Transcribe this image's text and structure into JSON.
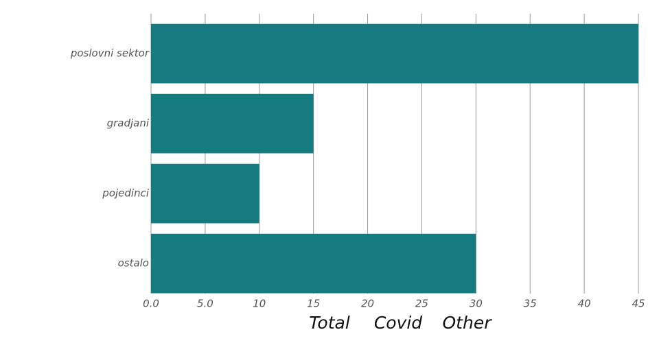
{
  "chart_data": {
    "type": "hbar",
    "categories": [
      "poslovni sektor",
      "gradjani",
      "pojedinci",
      "ostalo"
    ],
    "values": [
      45,
      15,
      10,
      30
    ],
    "color": "#167b7e",
    "xlim": [
      0,
      45
    ],
    "xticks": [
      {
        "value": 0,
        "label": "0.0"
      },
      {
        "value": 5,
        "label": "5.0"
      },
      10,
      15,
      20,
      25,
      30,
      35,
      40,
      45
    ],
    "grid": true
  },
  "controls": {
    "buttons": [
      "Total",
      "Covid",
      "Other"
    ]
  }
}
